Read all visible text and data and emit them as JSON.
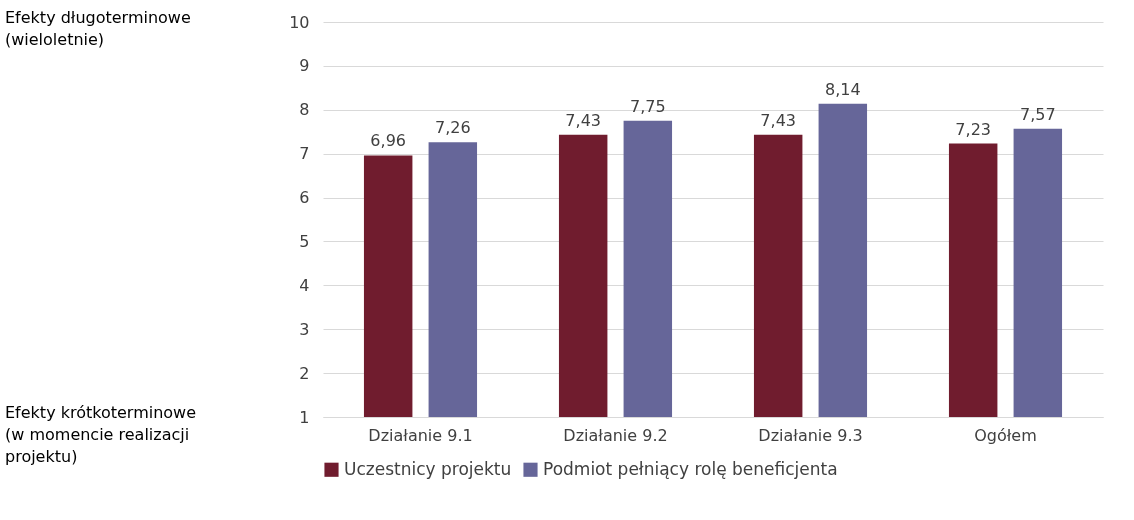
{
  "chart_data": {
    "type": "bar",
    "categories": [
      "Działanie 9.1",
      "Działanie 9.2",
      "Działanie 9.3",
      "Ogółem"
    ],
    "series": [
      {
        "name": "Uczestnicy projektu",
        "color": "#701c2e",
        "values": [
          6.96,
          7.43,
          7.43,
          7.23
        ],
        "value_labels": [
          "6,96",
          "7,43",
          "7,43",
          "7,23"
        ]
      },
      {
        "name": "Podmiot pełniący rolę beneficjenta",
        "color": "#666699",
        "values": [
          7.26,
          7.75,
          8.14,
          7.57
        ],
        "value_labels": [
          "7,26",
          "7,75",
          "8,14",
          "7,57"
        ]
      }
    ],
    "ylim": [
      1,
      10
    ],
    "yticks": [
      1,
      2,
      3,
      4,
      5,
      6,
      7,
      8,
      9,
      10
    ],
    "grid": "y",
    "legend": "bottom",
    "annotations": [
      "Efekty długoterminowe\n(wieloletnie)",
      "Efekty krótkoterminowe\n(w momencie realizacji\nprojektu)"
    ]
  }
}
